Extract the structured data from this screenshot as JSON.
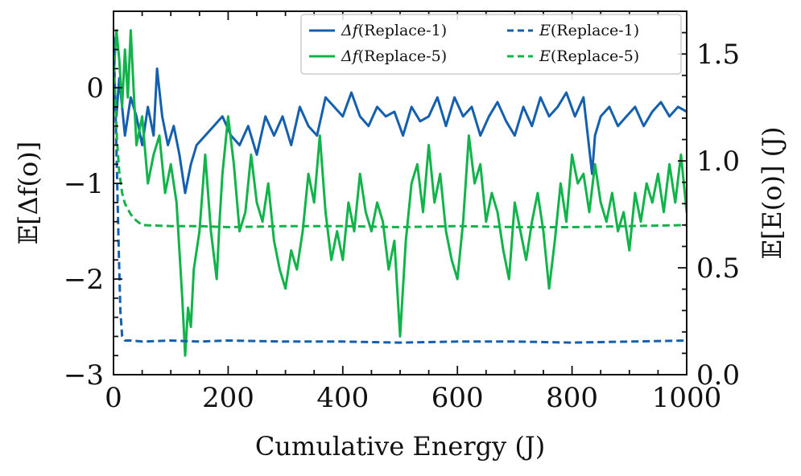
{
  "chart_data": {
    "type": "line",
    "title": "",
    "xlabel": "Cumulative Energy (J)",
    "ylabel": "𝔼[Δf(o)]",
    "ylabel_right": "𝔼[E(o)] (J)",
    "xlim": [
      0,
      1000
    ],
    "ylim": [
      -3,
      0.8
    ],
    "ylim_right": [
      0,
      1.7
    ],
    "x_ticks": [
      0,
      200,
      400,
      600,
      800,
      1000
    ],
    "x_tick_labels": [
      "0",
      "200",
      "400",
      "600",
      "800",
      "1000"
    ],
    "y_ticks": [
      -3,
      -2,
      -1,
      0
    ],
    "y_tick_labels": [
      "−3",
      "−2",
      "−1",
      "0"
    ],
    "y_right_ticks": [
      0.0,
      0.5,
      1.0,
      1.5
    ],
    "y_right_tick_labels": [
      "0.0",
      "0.5",
      "1.0",
      "1.5"
    ],
    "legend": {
      "position": "top-right",
      "columns": 2
    },
    "colors": {
      "blue": "#1560ae",
      "green": "#13b34b",
      "axis": "#111111"
    },
    "series": [
      {
        "name": "Δf(Replace-1)",
        "label_prefix": "Δf",
        "label_suffix": "(Replace-1)",
        "axis": "left",
        "style": "solid",
        "color": "#1560ae",
        "x": [
          0,
          5,
          10,
          15,
          20,
          30,
          40,
          50,
          60,
          70,
          76,
          85,
          95,
          105,
          115,
          125,
          135,
          145,
          160,
          175,
          190,
          205,
          220,
          235,
          250,
          265,
          280,
          295,
          310,
          325,
          340,
          355,
          370,
          385,
          400,
          415,
          430,
          445,
          460,
          475,
          490,
          505,
          520,
          535,
          550,
          565,
          580,
          595,
          610,
          625,
          640,
          655,
          670,
          685,
          700,
          715,
          730,
          745,
          760,
          775,
          790,
          805,
          820,
          835,
          840,
          850,
          865,
          880,
          895,
          910,
          925,
          940,
          955,
          970,
          985,
          1000
        ],
        "y": [
          -0.1,
          -0.3,
          0.1,
          -0.2,
          -0.5,
          -0.1,
          -0.3,
          -0.6,
          -0.2,
          -0.5,
          0.2,
          -0.3,
          -0.6,
          -0.4,
          -0.7,
          -1.1,
          -0.8,
          -0.6,
          -0.5,
          -0.4,
          -0.3,
          -0.5,
          -0.6,
          -0.4,
          -0.7,
          -0.3,
          -0.5,
          -0.3,
          -0.6,
          -0.2,
          -0.4,
          -0.5,
          -0.1,
          -0.2,
          -0.3,
          -0.05,
          -0.3,
          -0.4,
          -0.2,
          -0.3,
          -0.25,
          -0.5,
          -0.2,
          -0.35,
          -0.3,
          -0.1,
          -0.4,
          -0.1,
          -0.3,
          -0.2,
          -0.5,
          -0.3,
          -0.15,
          -0.35,
          -0.5,
          -0.2,
          -0.4,
          -0.1,
          -0.3,
          -0.2,
          -0.05,
          -0.3,
          -0.1,
          -0.9,
          -0.5,
          -0.3,
          -0.2,
          -0.4,
          -0.3,
          -0.2,
          -0.4,
          -0.25,
          -0.15,
          -0.3,
          -0.2,
          -0.25
        ]
      },
      {
        "name": "Δf(Replace-5)",
        "label_prefix": "Δf",
        "label_suffix": "(Replace-5)",
        "axis": "left",
        "style": "solid",
        "color": "#13b34b",
        "x": [
          0,
          5,
          10,
          15,
          20,
          25,
          30,
          35,
          40,
          50,
          60,
          70,
          80,
          90,
          100,
          110,
          120,
          125,
          130,
          135,
          140,
          150,
          160,
          170,
          180,
          185,
          190,
          200,
          210,
          220,
          230,
          240,
          250,
          260,
          270,
          280,
          290,
          300,
          310,
          320,
          330,
          340,
          350,
          360,
          370,
          380,
          390,
          400,
          410,
          420,
          430,
          440,
          450,
          460,
          470,
          480,
          490,
          500,
          510,
          520,
          530,
          540,
          550,
          560,
          570,
          580,
          590,
          600,
          610,
          620,
          630,
          640,
          650,
          660,
          670,
          680,
          690,
          700,
          710,
          720,
          730,
          740,
          750,
          760,
          770,
          780,
          790,
          800,
          810,
          820,
          830,
          840,
          850,
          860,
          870,
          880,
          890,
          900,
          910,
          920,
          930,
          940,
          950,
          960,
          970,
          980,
          990,
          1000
        ],
        "y": [
          0.1,
          0.6,
          0.3,
          -0.2,
          0.4,
          -0.1,
          0.6,
          0.0,
          -0.6,
          -0.3,
          -1.0,
          -0.7,
          -0.5,
          -1.1,
          -0.8,
          -1.2,
          -2.2,
          -2.8,
          -2.3,
          -2.5,
          -1.9,
          -1.5,
          -0.7,
          -1.5,
          -2.0,
          -1.4,
          -0.9,
          -0.3,
          -0.8,
          -1.5,
          -1.3,
          -0.7,
          -1.2,
          -1.4,
          -1.0,
          -1.6,
          -1.9,
          -2.1,
          -1.7,
          -1.9,
          -1.5,
          -0.9,
          -1.2,
          -0.5,
          -1.3,
          -1.8,
          -1.5,
          -1.8,
          -1.2,
          -1.5,
          -0.9,
          -1.3,
          -1.5,
          -1.2,
          -1.4,
          -1.9,
          -1.6,
          -2.6,
          -1.6,
          -1.0,
          -0.8,
          -1.3,
          -0.6,
          -1.2,
          -0.9,
          -1.5,
          -1.8,
          -2.0,
          -1.4,
          -0.5,
          -1.0,
          -0.8,
          -1.4,
          -1.1,
          -1.3,
          -1.7,
          -2.0,
          -1.2,
          -1.5,
          -1.8,
          -1.4,
          -1.1,
          -1.5,
          -2.1,
          -1.6,
          -1.0,
          -1.4,
          -0.7,
          -1.0,
          -0.9,
          -1.3,
          -0.8,
          -1.2,
          -1.4,
          -1.1,
          -1.5,
          -1.3,
          -1.7,
          -1.1,
          -1.4,
          -1.0,
          -1.2,
          -0.9,
          -1.3,
          -0.8,
          -1.2,
          -0.7,
          -1.3
        ]
      },
      {
        "name": "E(Replace-1)",
        "label_prefix": "E",
        "label_suffix": "(Replace-1)",
        "axis": "right",
        "style": "dashed",
        "color": "#1560ae",
        "x": [
          0,
          3,
          6,
          9,
          12,
          15,
          20,
          30,
          50,
          100,
          150,
          200,
          300,
          400,
          500,
          600,
          700,
          800,
          900,
          1000
        ],
        "y": [
          1.58,
          1.3,
          0.95,
          0.6,
          0.3,
          0.18,
          0.16,
          0.16,
          0.155,
          0.16,
          0.155,
          0.16,
          0.155,
          0.155,
          0.15,
          0.155,
          0.155,
          0.15,
          0.155,
          0.16
        ]
      },
      {
        "name": "E(Replace-5)",
        "label_prefix": "E",
        "label_suffix": "(Replace-5)",
        "axis": "right",
        "style": "dashed",
        "color": "#13b34b",
        "x": [
          0,
          3,
          6,
          10,
          15,
          20,
          30,
          40,
          50,
          100,
          150,
          200,
          300,
          400,
          500,
          600,
          700,
          800,
          900,
          1000
        ],
        "y": [
          1.5,
          1.3,
          1.1,
          0.95,
          0.85,
          0.8,
          0.75,
          0.72,
          0.7,
          0.695,
          0.695,
          0.69,
          0.695,
          0.695,
          0.69,
          0.695,
          0.69,
          0.69,
          0.695,
          0.7
        ]
      }
    ]
  }
}
